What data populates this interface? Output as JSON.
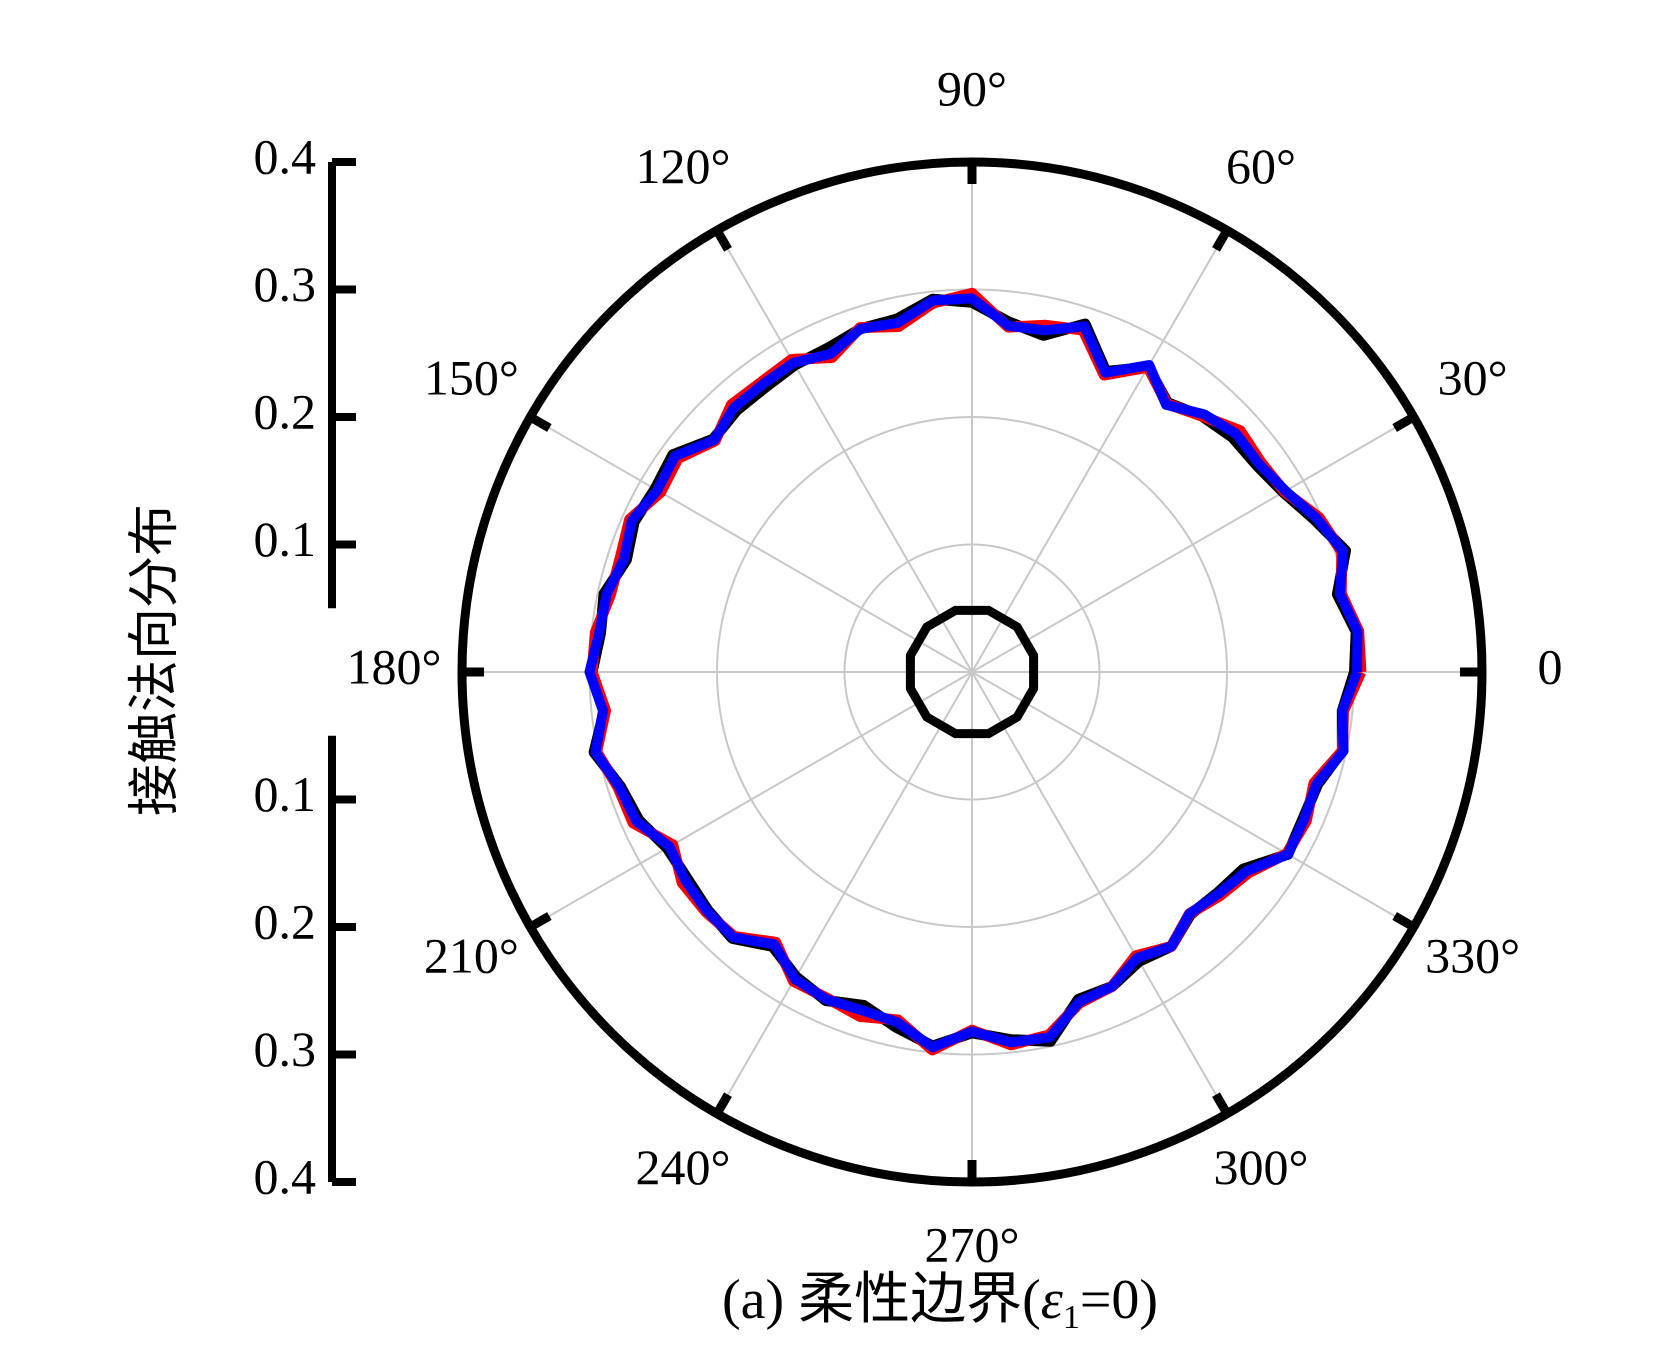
{
  "chart_data": {
    "type": "polar-line",
    "ylabel": "接触法向分布",
    "caption": {
      "prefix": "(a) 柔性边界(",
      "epsilon": "ε",
      "subscript": "1",
      "suffix": "=0)"
    },
    "radial_range": [
      0,
      0.4
    ],
    "radial_ticks": [
      0.1,
      0.2,
      0.3,
      0.4
    ],
    "radial_tick_labels": [
      "0.1",
      "0.2",
      "0.3",
      "0.4"
    ],
    "grid": true,
    "angle_ticks": [
      0,
      30,
      60,
      90,
      120,
      150,
      180,
      210,
      240,
      270,
      300,
      330
    ],
    "angle_labels": [
      "0",
      "30°",
      "60°",
      "90°",
      "120°",
      "150°",
      "180°",
      "210°",
      "240°",
      "270°",
      "300°",
      "330°"
    ],
    "inner_marker_radius": 0.05,
    "series": [
      {
        "color": "#000000",
        "angles": [
          0,
          6,
          12,
          18,
          24,
          30,
          36,
          42,
          48,
          54,
          60,
          66,
          72,
          78,
          84,
          90,
          96,
          102,
          108,
          114,
          120,
          126,
          132,
          138,
          144,
          150,
          156,
          162,
          168,
          174,
          180,
          186,
          192,
          198,
          204,
          210,
          216,
          222,
          228,
          234,
          240,
          246,
          252,
          258,
          264,
          270,
          276,
          282,
          288,
          294,
          300,
          306,
          312,
          318,
          324,
          330,
          336,
          342,
          348,
          354
        ],
        "values": [
          0.3,
          0.303,
          0.293,
          0.308,
          0.294,
          0.282,
          0.276,
          0.275,
          0.27,
          0.261,
          0.276,
          0.258,
          0.287,
          0.27,
          0.276,
          0.29,
          0.294,
          0.283,
          0.283,
          0.278,
          0.278,
          0.276,
          0.276,
          0.273,
          0.29,
          0.287,
          0.29,
          0.285,
          0.295,
          0.293,
          0.298,
          0.29,
          0.303,
          0.29,
          0.286,
          0.276,
          0.276,
          0.279,
          0.281,
          0.266,
          0.276,
          0.282,
          0.275,
          0.285,
          0.295,
          0.283,
          0.29,
          0.296,
          0.27,
          0.27,
          0.262,
          0.266,
          0.256,
          0.259,
          0.263,
          0.286,
          0.284,
          0.285,
          0.297,
          0.292
        ]
      },
      {
        "color": "#ff0000",
        "angles": [
          0,
          6,
          12,
          18,
          24,
          30,
          36,
          42,
          48,
          54,
          60,
          66,
          72,
          78,
          84,
          90,
          96,
          102,
          108,
          114,
          120,
          126,
          132,
          138,
          144,
          150,
          156,
          162,
          168,
          174,
          180,
          186,
          192,
          198,
          204,
          210,
          216,
          222,
          228,
          234,
          240,
          246,
          252,
          258,
          264,
          270,
          276,
          282,
          288,
          294,
          300,
          306,
          312,
          318,
          324,
          330,
          336,
          342,
          348,
          354
        ],
        "values": [
          0.305,
          0.305,
          0.296,
          0.305,
          0.298,
          0.283,
          0.28,
          0.283,
          0.27,
          0.26,
          0.276,
          0.255,
          0.282,
          0.278,
          0.272,
          0.297,
          0.291,
          0.277,
          0.284,
          0.27,
          0.283,
          0.281,
          0.282,
          0.271,
          0.285,
          0.282,
          0.294,
          0.29,
          0.29,
          0.297,
          0.298,
          0.289,
          0.301,
          0.292,
          0.291,
          0.271,
          0.281,
          0.281,
          0.279,
          0.262,
          0.28,
          0.28,
          0.284,
          0.279,
          0.298,
          0.281,
          0.294,
          0.291,
          0.273,
          0.27,
          0.257,
          0.266,
          0.255,
          0.262,
          0.268,
          0.285,
          0.287,
          0.282,
          0.297,
          0.293
        ]
      },
      {
        "color": "#0000ff",
        "angles": [
          0,
          6,
          12,
          18,
          24,
          30,
          36,
          42,
          48,
          54,
          60,
          66,
          72,
          78,
          84,
          90,
          96,
          102,
          108,
          114,
          120,
          126,
          132,
          138,
          144,
          150,
          156,
          162,
          168,
          174,
          180,
          186,
          192,
          198,
          204,
          210,
          216,
          222,
          228,
          234,
          240,
          246,
          252,
          258,
          264,
          270,
          276,
          282,
          288,
          294,
          300,
          306,
          312,
          318,
          324,
          330,
          336,
          342,
          348,
          354
        ],
        "values": [
          0.302,
          0.304,
          0.295,
          0.306,
          0.296,
          0.284,
          0.278,
          0.279,
          0.272,
          0.259,
          0.278,
          0.257,
          0.285,
          0.274,
          0.273,
          0.293,
          0.293,
          0.28,
          0.283,
          0.273,
          0.28,
          0.279,
          0.279,
          0.272,
          0.288,
          0.285,
          0.292,
          0.287,
          0.293,
          0.294,
          0.3,
          0.291,
          0.302,
          0.291,
          0.288,
          0.274,
          0.278,
          0.28,
          0.28,
          0.264,
          0.278,
          0.281,
          0.279,
          0.281,
          0.296,
          0.282,
          0.292,
          0.293,
          0.272,
          0.27,
          0.259,
          0.266,
          0.255,
          0.26,
          0.266,
          0.286,
          0.285,
          0.284,
          0.298,
          0.292
        ]
      }
    ]
  }
}
